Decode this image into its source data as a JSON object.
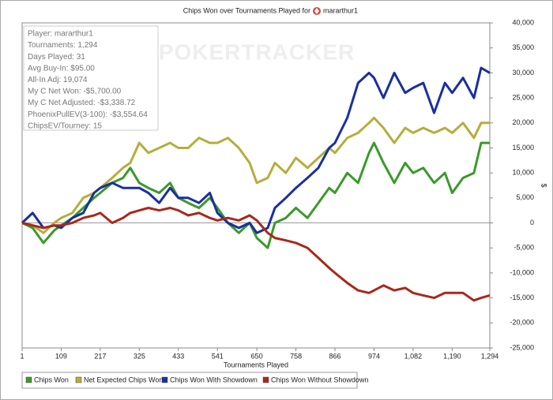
{
  "chart_data": {
    "type": "line",
    "title": "Chips Won over Tournaments Played for",
    "player": "mararthur1",
    "watermark": "POKERTRACKER",
    "xlabel": "Tournaments Played",
    "ylabel": "$",
    "info_lines": [
      "Player: mararthur1",
      "Tournaments: 1,294",
      "Days Played: 31",
      "Avg Buy-In: $95.00",
      "All-In Adj: 19,074",
      "My C Net Won: -$5,700.00",
      "My C Net Adjusted: -$3,338.72",
      "PhoenixPullEV(3-100): -$3,554.64",
      "ChipsEV/Tourney: 15"
    ],
    "x": [
      1,
      30,
      60,
      90,
      109,
      140,
      170,
      200,
      217,
      250,
      280,
      300,
      325,
      350,
      380,
      410,
      433,
      460,
      490,
      520,
      541,
      570,
      600,
      630,
      650,
      680,
      700,
      730,
      758,
      790,
      820,
      850,
      866,
      900,
      930,
      960,
      974,
      1000,
      1030,
      1060,
      1082,
      1110,
      1140,
      1170,
      1190,
      1220,
      1250,
      1270,
      1294
    ],
    "series": [
      {
        "name": "Chips Won",
        "color": "#3a9a2a",
        "values": [
          0,
          -1000,
          -4000,
          -1500,
          -500,
          1000,
          3000,
          5000,
          6000,
          8000,
          9000,
          11000,
          8000,
          7000,
          6000,
          8000,
          5000,
          4000,
          3000,
          5000,
          3000,
          0,
          -2000,
          0,
          -3000,
          -5000,
          0,
          1000,
          3000,
          1000,
          4000,
          7000,
          6000,
          10000,
          8000,
          14000,
          16000,
          12000,
          8000,
          12000,
          10000,
          11000,
          8000,
          10000,
          6000,
          9000,
          10000,
          16000,
          16000
        ]
      },
      {
        "name": "Net Expected Chips Won",
        "color": "#b5ae3a",
        "values": [
          0,
          -500,
          -2000,
          0,
          1000,
          2000,
          5000,
          6000,
          7000,
          9000,
          11000,
          12000,
          16000,
          14000,
          15000,
          16000,
          15000,
          15000,
          17000,
          16000,
          16000,
          17000,
          15000,
          12000,
          8000,
          9000,
          12000,
          10000,
          13000,
          11000,
          13000,
          15000,
          14000,
          17000,
          18000,
          20000,
          21000,
          19000,
          16000,
          19000,
          18000,
          19000,
          18000,
          19000,
          18000,
          20000,
          17000,
          20000,
          20000
        ]
      },
      {
        "name": "Chips Won With Showdown",
        "color": "#1a2fa0",
        "values": [
          0,
          2000,
          -1000,
          -500,
          -1000,
          1000,
          2000,
          6000,
          7000,
          8000,
          7000,
          7000,
          7000,
          6000,
          4000,
          7000,
          5000,
          5000,
          4000,
          6000,
          2000,
          0,
          -1000,
          0,
          -2000,
          -1000,
          3000,
          5000,
          7000,
          9000,
          11000,
          15000,
          16000,
          21000,
          28000,
          30000,
          29000,
          25000,
          30000,
          26000,
          27000,
          28000,
          22000,
          28000,
          26000,
          29000,
          25000,
          31000,
          30000
        ]
      },
      {
        "name": "Chips Won Without Showdown",
        "color": "#a8281c",
        "values": [
          0,
          -500,
          -1000,
          -500,
          -500,
          0,
          1000,
          1500,
          2000,
          0,
          1000,
          2000,
          2500,
          3000,
          2500,
          3000,
          2500,
          1500,
          2000,
          1000,
          500,
          1000,
          500,
          1500,
          500,
          -2000,
          -3000,
          -3500,
          -4000,
          -5000,
          -7000,
          -9000,
          -10000,
          -12000,
          -13500,
          -14000,
          -13500,
          -12500,
          -13500,
          -13000,
          -14000,
          -14500,
          -15000,
          -14000,
          -14000,
          -14000,
          -15500,
          -15000,
          -14500
        ]
      }
    ],
    "xlim": [
      1,
      1294
    ],
    "xticks": [
      1,
      109,
      217,
      325,
      433,
      541,
      650,
      758,
      866,
      974,
      {
        "value": 1082,
        "label": "1,082"
      },
      {
        "value": 1190,
        "label": "1,190"
      },
      {
        "value": 1294,
        "label": "1,294"
      }
    ],
    "ylim": [
      -25000,
      40000
    ],
    "yticks": [
      {
        "value": -25000,
        "label": "-25,000"
      },
      {
        "value": -20000,
        "label": "-20,000"
      },
      {
        "value": -15000,
        "label": "-15,000"
      },
      {
        "value": -10000,
        "label": "-10,000"
      },
      {
        "value": -5000,
        "label": "-5,000"
      },
      0,
      {
        "value": 5000,
        "label": "5,000"
      },
      {
        "value": 10000,
        "label": "10,000"
      },
      {
        "value": 15000,
        "label": "15,000"
      },
      {
        "value": 20000,
        "label": "20,000"
      },
      {
        "value": 25000,
        "label": "25,000"
      },
      {
        "value": 30000,
        "label": "30,000"
      },
      {
        "value": 35000,
        "label": "35,000"
      },
      {
        "value": 40000,
        "label": "40,000"
      }
    ],
    "zero_line": true
  }
}
